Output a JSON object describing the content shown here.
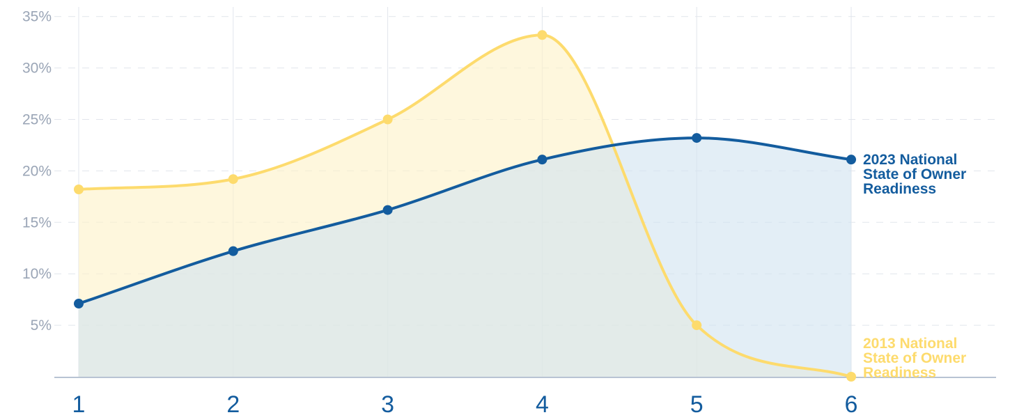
{
  "chart_data": {
    "type": "area",
    "x": [
      1,
      2,
      3,
      4,
      5,
      6
    ],
    "ylim": [
      0,
      35
    ],
    "y_ticks": [
      "5%",
      "10%",
      "15%",
      "20%",
      "25%",
      "30%",
      "35%"
    ],
    "x_ticks": [
      "1",
      "2",
      "3",
      "4",
      "5",
      "6"
    ],
    "grid": true,
    "series": [
      {
        "key": "s2013",
        "label_lines": [
          "2013 National",
          "State of Owner",
          "Readiness"
        ],
        "values": [
          18.2,
          19.2,
          25.0,
          33.2,
          5.0,
          0
        ],
        "color": "#fddb6d",
        "fill": "#fdf2c8"
      },
      {
        "key": "s2023",
        "label_lines": [
          "2023 National",
          "State of Owner",
          "Readiness"
        ],
        "values": [
          7.1,
          12.2,
          16.2,
          21.1,
          23.2,
          21.1
        ],
        "color": "#135c9e",
        "fill": "#d2e3f1"
      }
    ]
  }
}
